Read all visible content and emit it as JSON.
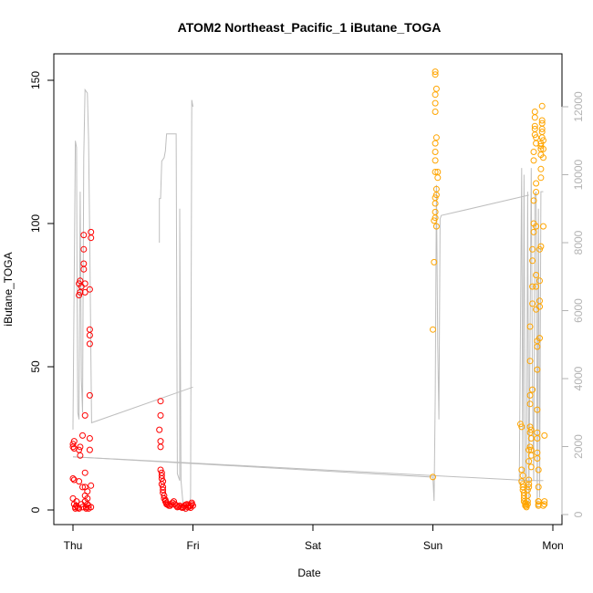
{
  "chart_data": {
    "type": "scatter",
    "title": "ATOM2 Northeast_Pacific_1 iButane_TOGA",
    "xlabel": "Date",
    "ylabel": "iButane_TOGA",
    "x_ticks": [
      "Thu",
      "Fri",
      "Sat",
      "Sun",
      "Mon"
    ],
    "x_range_days": [
      -0.25,
      4.1
    ],
    "ylim": [
      -5,
      156
    ],
    "y_ticks": [
      0,
      50,
      100,
      150
    ],
    "y2lim": [
      -400,
      13500
    ],
    "y2_ticks": [
      0,
      2000,
      4000,
      6000,
      8000,
      10000,
      12000
    ],
    "grid": false,
    "colors": {
      "series1": "#ff0000",
      "series2": "#ffa500",
      "secondary_line": "#bebebe"
    },
    "series": [
      {
        "marker": "open-circle",
        "color": "#ff0000",
        "points": [
          [
            0.0,
            22.0
          ],
          [
            0.0,
            23.0
          ],
          [
            0.01,
            24.0
          ],
          [
            0.01,
            21.5
          ],
          [
            0.0,
            11.0
          ],
          [
            0.01,
            10.5
          ],
          [
            0.0,
            4.0
          ],
          [
            0.01,
            2.0
          ],
          [
            0.02,
            1.0
          ],
          [
            0.02,
            0.5
          ],
          [
            0.03,
            1.5
          ],
          [
            0.03,
            3.0
          ],
          [
            0.04,
            0.8
          ],
          [
            0.05,
            0.5
          ],
          [
            0.05,
            10.0
          ],
          [
            0.05,
            21.0
          ],
          [
            0.06,
            22.0
          ],
          [
            0.06,
            19.0
          ],
          [
            0.05,
            75.0
          ],
          [
            0.06,
            76.0
          ],
          [
            0.05,
            79.0
          ],
          [
            0.06,
            80.0
          ],
          [
            0.07,
            78.0
          ],
          [
            0.07,
            2.0
          ],
          [
            0.08,
            1.0
          ],
          [
            0.08,
            8.0
          ],
          [
            0.08,
            26.0
          ],
          [
            0.09,
            84.0
          ],
          [
            0.09,
            86.0
          ],
          [
            0.09,
            91.0
          ],
          [
            0.09,
            96.0
          ],
          [
            0.1,
            79.0
          ],
          [
            0.1,
            76.0
          ],
          [
            0.1,
            33.0
          ],
          [
            0.1,
            13.0
          ],
          [
            0.1,
            8.0
          ],
          [
            0.1,
            5.0
          ],
          [
            0.1,
            3.0
          ],
          [
            0.11,
            1.0
          ],
          [
            0.11,
            0.5
          ],
          [
            0.12,
            2.0
          ],
          [
            0.12,
            4.0
          ],
          [
            0.12,
            6.5
          ],
          [
            0.13,
            1.5
          ],
          [
            0.13,
            0.5
          ],
          [
            0.14,
            40.0
          ],
          [
            0.14,
            21.0
          ],
          [
            0.14,
            25.0
          ],
          [
            0.14,
            58.0
          ],
          [
            0.14,
            61.0
          ],
          [
            0.14,
            63.0
          ],
          [
            0.14,
            77.0
          ],
          [
            0.15,
            95.0
          ],
          [
            0.15,
            97.0
          ],
          [
            0.15,
            8.5
          ],
          [
            0.15,
            1.0
          ],
          [
            0.73,
            38.0
          ],
          [
            0.73,
            33.0
          ],
          [
            0.72,
            28.0
          ],
          [
            0.73,
            24.0
          ],
          [
            0.73,
            22.0
          ],
          [
            0.73,
            14.0
          ],
          [
            0.74,
            13.0
          ],
          [
            0.74,
            12.0
          ],
          [
            0.74,
            11.0
          ],
          [
            0.75,
            10.0
          ],
          [
            0.74,
            9.0
          ],
          [
            0.75,
            8.0
          ],
          [
            0.75,
            7.0
          ],
          [
            0.75,
            6.0
          ],
          [
            0.76,
            5.0
          ],
          [
            0.76,
            4.0
          ],
          [
            0.77,
            3.5
          ],
          [
            0.77,
            3.0
          ],
          [
            0.78,
            2.5
          ],
          [
            0.78,
            2.0
          ],
          [
            0.79,
            1.8
          ],
          [
            0.8,
            1.5
          ],
          [
            0.81,
            1.5
          ],
          [
            0.82,
            2.0
          ],
          [
            0.83,
            2.5
          ],
          [
            0.84,
            3.0
          ],
          [
            0.85,
            2.0
          ],
          [
            0.86,
            1.5
          ],
          [
            0.87,
            1.0
          ],
          [
            0.88,
            1.2
          ],
          [
            0.89,
            1.5
          ],
          [
            0.9,
            1.0
          ],
          [
            0.91,
            0.8
          ],
          [
            0.92,
            1.0
          ],
          [
            0.93,
            1.5
          ],
          [
            0.94,
            1.8
          ],
          [
            0.95,
            2.0
          ],
          [
            0.96,
            1.5
          ],
          [
            0.97,
            1.2
          ],
          [
            0.98,
            1.5
          ],
          [
            0.99,
            2.0
          ],
          [
            1.0,
            1.5
          ],
          [
            0.94,
            0.5
          ],
          [
            0.96,
            1.0
          ],
          [
            0.98,
            0.8
          ],
          [
            0.99,
            2.5
          ]
        ]
      },
      {
        "marker": "open-circle",
        "color": "#ffa500",
        "points": [
          [
            3.0,
            11.5
          ],
          [
            3.0,
            63.0
          ],
          [
            3.01,
            86.5
          ],
          [
            3.01,
            101.0
          ],
          [
            3.02,
            102.0
          ],
          [
            3.02,
            104.0
          ],
          [
            3.02,
            107.0
          ],
          [
            3.02,
            109.0
          ],
          [
            3.03,
            110.0
          ],
          [
            3.03,
            112.0
          ],
          [
            3.04,
            116.0
          ],
          [
            3.04,
            118.0
          ],
          [
            3.02,
            118.0
          ],
          [
            3.02,
            122.0
          ],
          [
            3.02,
            125.0
          ],
          [
            3.02,
            128.0
          ],
          [
            3.03,
            130.0
          ],
          [
            3.02,
            139.0
          ],
          [
            3.02,
            142.0
          ],
          [
            3.02,
            145.0
          ],
          [
            3.03,
            147.0
          ],
          [
            3.02,
            152.0
          ],
          [
            3.02,
            153.0
          ],
          [
            3.03,
            99.0
          ],
          [
            3.73,
            30.0
          ],
          [
            3.74,
            29.0
          ],
          [
            3.74,
            14.0
          ],
          [
            3.75,
            12.0
          ],
          [
            3.74,
            10.0
          ],
          [
            3.75,
            9.0
          ],
          [
            3.75,
            8.0
          ],
          [
            3.75,
            7.0
          ],
          [
            3.76,
            6.0
          ],
          [
            3.76,
            5.0
          ],
          [
            3.76,
            4.0
          ],
          [
            3.76,
            3.0
          ],
          [
            3.77,
            2.5
          ],
          [
            3.77,
            2.0
          ],
          [
            3.77,
            1.5
          ],
          [
            3.78,
            1.0
          ],
          [
            3.78,
            1.5
          ],
          [
            3.79,
            2.0
          ],
          [
            3.79,
            3.0
          ],
          [
            3.79,
            5.0
          ],
          [
            3.79,
            7.0
          ],
          [
            3.8,
            9.0
          ],
          [
            3.8,
            10.5
          ],
          [
            3.8,
            8.0
          ],
          [
            3.8,
            17.0
          ],
          [
            3.8,
            21.0
          ],
          [
            3.81,
            22.0
          ],
          [
            3.81,
            27.0
          ],
          [
            3.81,
            29.0
          ],
          [
            3.81,
            37.0
          ],
          [
            3.81,
            40.0
          ],
          [
            3.81,
            52.0
          ],
          [
            3.81,
            64.0
          ],
          [
            3.82,
            15.0
          ],
          [
            3.82,
            19.0
          ],
          [
            3.82,
            21.0
          ],
          [
            3.82,
            25.0
          ],
          [
            3.82,
            28.0
          ],
          [
            3.83,
            42.0
          ],
          [
            3.83,
            72.0
          ],
          [
            3.83,
            78.0
          ],
          [
            3.83,
            87.0
          ],
          [
            3.83,
            91.0
          ],
          [
            3.84,
            97.0
          ],
          [
            3.84,
            100.0
          ],
          [
            3.84,
            108.0
          ],
          [
            3.84,
            122.0
          ],
          [
            3.84,
            125.0
          ],
          [
            3.85,
            131.0
          ],
          [
            3.85,
            134.0
          ],
          [
            3.85,
            139.0
          ],
          [
            3.85,
            137.0
          ],
          [
            3.85,
            133.0
          ],
          [
            3.86,
            130.0
          ],
          [
            3.86,
            128.0
          ],
          [
            3.86,
            111.0
          ],
          [
            3.86,
            114.0
          ],
          [
            3.86,
            99.0
          ],
          [
            3.86,
            82.0
          ],
          [
            3.86,
            78.0
          ],
          [
            3.86,
            70.0
          ],
          [
            3.87,
            59.0
          ],
          [
            3.87,
            57.0
          ],
          [
            3.87,
            49.0
          ],
          [
            3.87,
            35.0
          ],
          [
            3.87,
            27.0
          ],
          [
            3.87,
            25.0
          ],
          [
            3.87,
            20.0
          ],
          [
            3.87,
            18.0
          ],
          [
            3.88,
            14.0
          ],
          [
            3.88,
            8.0
          ],
          [
            3.88,
            3.0
          ],
          [
            3.88,
            2.0
          ],
          [
            3.88,
            1.5
          ],
          [
            3.88,
            3.0
          ],
          [
            3.89,
            60.0
          ],
          [
            3.89,
            71.0
          ],
          [
            3.89,
            73.0
          ],
          [
            3.89,
            80.0
          ],
          [
            3.89,
            91.0
          ],
          [
            3.9,
            92.0
          ],
          [
            3.9,
            116.0
          ],
          [
            3.9,
            119.0
          ],
          [
            3.9,
            124.0
          ],
          [
            3.9,
            126.0
          ],
          [
            3.9,
            127.0
          ],
          [
            3.9,
            128.0
          ],
          [
            3.91,
            130.0
          ],
          [
            3.91,
            132.0
          ],
          [
            3.91,
            133.0
          ],
          [
            3.91,
            135.0
          ],
          [
            3.91,
            136.0
          ],
          [
            3.91,
            141.0
          ],
          [
            3.92,
            123.0
          ],
          [
            3.92,
            126.0
          ],
          [
            3.92,
            129.0
          ],
          [
            3.92,
            99.0
          ],
          [
            3.93,
            26.0
          ],
          [
            3.93,
            3.0
          ],
          [
            3.93,
            2.0
          ],
          [
            3.92,
            1.5
          ]
        ]
      }
    ],
    "secondary_line": {
      "color": "#bebebe",
      "axis": "right",
      "segments": [
        [
          [
            0.0,
            2500
          ],
          [
            0.0,
            2600
          ],
          [
            0.02,
            11000
          ],
          [
            0.03,
            10800
          ],
          [
            0.035,
            6000
          ],
          [
            0.04,
            3000
          ],
          [
            0.05,
            2800
          ],
          [
            0.06,
            9500
          ],
          [
            0.07,
            4000
          ],
          [
            0.08,
            3000
          ],
          [
            0.09,
            10500
          ],
          [
            0.1,
            12500
          ],
          [
            0.12,
            12400
          ],
          [
            0.13,
            11000
          ],
          [
            0.14,
            8000
          ],
          [
            0.15,
            4500
          ],
          [
            0.155,
            2700
          ],
          [
            1.0,
            3750
          ]
        ],
        [
          [
            0.72,
            8000
          ],
          [
            0.72,
            9300
          ],
          [
            0.73,
            9300
          ],
          [
            0.74,
            10400
          ],
          [
            0.76,
            10500
          ],
          [
            0.77,
            10700
          ],
          [
            0.78,
            11200
          ],
          [
            0.84,
            11200
          ],
          [
            0.86,
            11200
          ],
          [
            0.87,
            1200
          ],
          [
            0.89,
            1000
          ],
          [
            0.89,
            9000
          ],
          [
            0.9,
            1000
          ],
          [
            0.92,
            200
          ],
          [
            0.93,
            100
          ],
          [
            0.94,
            200
          ],
          [
            0.96,
            200
          ],
          [
            0.97,
            300
          ],
          [
            0.98,
            500
          ],
          [
            0.99,
            12200
          ],
          [
            1.0,
            12000
          ]
        ],
        [
          [
            0.0,
            1700
          ],
          [
            3.0,
            1100
          ],
          [
            3.01,
            400
          ],
          [
            3.02,
            3500
          ],
          [
            3.03,
            9700
          ],
          [
            3.04,
            5000
          ],
          [
            3.05,
            2800
          ],
          [
            3.06,
            8700
          ],
          [
            3.07,
            8800
          ],
          [
            3.8,
            9400
          ]
        ],
        [
          [
            3.72,
            900
          ],
          [
            3.74,
            10200
          ],
          [
            3.75,
            1000
          ],
          [
            3.76,
            10000
          ],
          [
            3.77,
            300
          ],
          [
            3.78,
            400
          ],
          [
            3.79,
            9500
          ],
          [
            3.8,
            300
          ],
          [
            3.82,
            10200
          ],
          [
            3.83,
            4000
          ],
          [
            3.84,
            1000
          ],
          [
            3.85,
            9400
          ],
          [
            3.86,
            9500
          ],
          [
            3.87,
            200
          ],
          [
            3.88,
            9000
          ],
          [
            3.89,
            500
          ],
          [
            3.9,
            9500
          ],
          [
            3.92,
            9500
          ]
        ],
        [
          [
            0.0,
            1700
          ],
          [
            3.8,
            1000
          ],
          [
            3.92,
            1000
          ]
        ]
      ]
    }
  }
}
